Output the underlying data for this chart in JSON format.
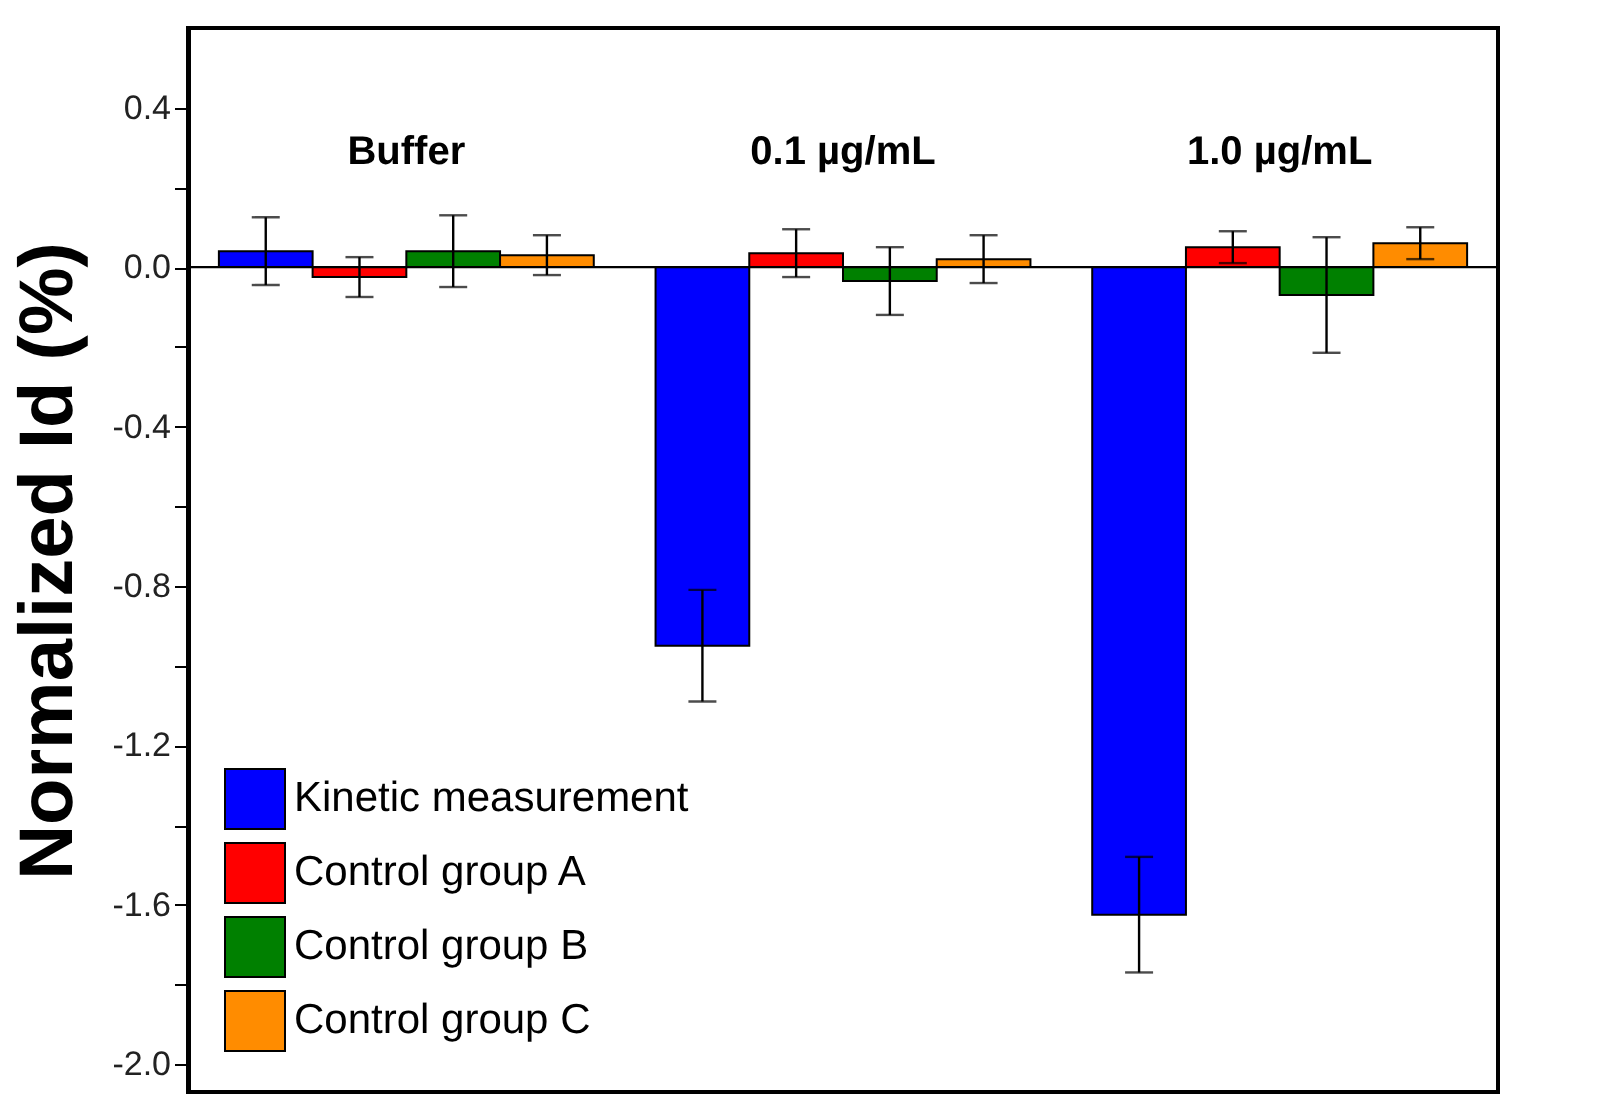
{
  "chart_data": {
    "type": "bar",
    "ylabel": "Normalized Id (%)",
    "categories": [
      "Buffer",
      "0.1 µg/mL",
      "1.0 µg/mL"
    ],
    "series": [
      {
        "name": "Kinetic measurement",
        "color": "#0000ff",
        "values": [
          0.04,
          -0.95,
          -1.625
        ],
        "errors": [
          0.085,
          0.14,
          0.145
        ]
      },
      {
        "name": "Control group A",
        "color": "#ff0000",
        "values": [
          -0.025,
          0.035,
          0.05
        ],
        "errors": [
          0.05,
          0.06,
          0.04
        ]
      },
      {
        "name": "Control group B",
        "color": "#008000",
        "values": [
          0.04,
          -0.035,
          -0.07
        ],
        "errors": [
          0.09,
          0.085,
          0.145
        ]
      },
      {
        "name": "Control group C",
        "color": "#ff8c00",
        "values": [
          0.03,
          0.02,
          0.06
        ],
        "errors": [
          0.05,
          0.06,
          0.04
        ]
      }
    ],
    "ylim": [
      -2.07,
      0.6
    ],
    "yticks": [
      {
        "value": -2.0,
        "label": "-2.0"
      },
      {
        "value": -1.8,
        "label": null
      },
      {
        "value": -1.6,
        "label": "-1.6"
      },
      {
        "value": -1.4,
        "label": null
      },
      {
        "value": -1.2,
        "label": "-1.2"
      },
      {
        "value": -1.0,
        "label": null
      },
      {
        "value": -0.8,
        "label": "-0.8"
      },
      {
        "value": -0.6,
        "label": null
      },
      {
        "value": -0.4,
        "label": "-0.4"
      },
      {
        "value": -0.2,
        "label": null
      },
      {
        "value": 0.0,
        "label": "0.0"
      },
      {
        "value": 0.2,
        "label": null
      },
      {
        "value": 0.4,
        "label": "0.4"
      }
    ],
    "legend": "bottom left",
    "grid": false
  }
}
